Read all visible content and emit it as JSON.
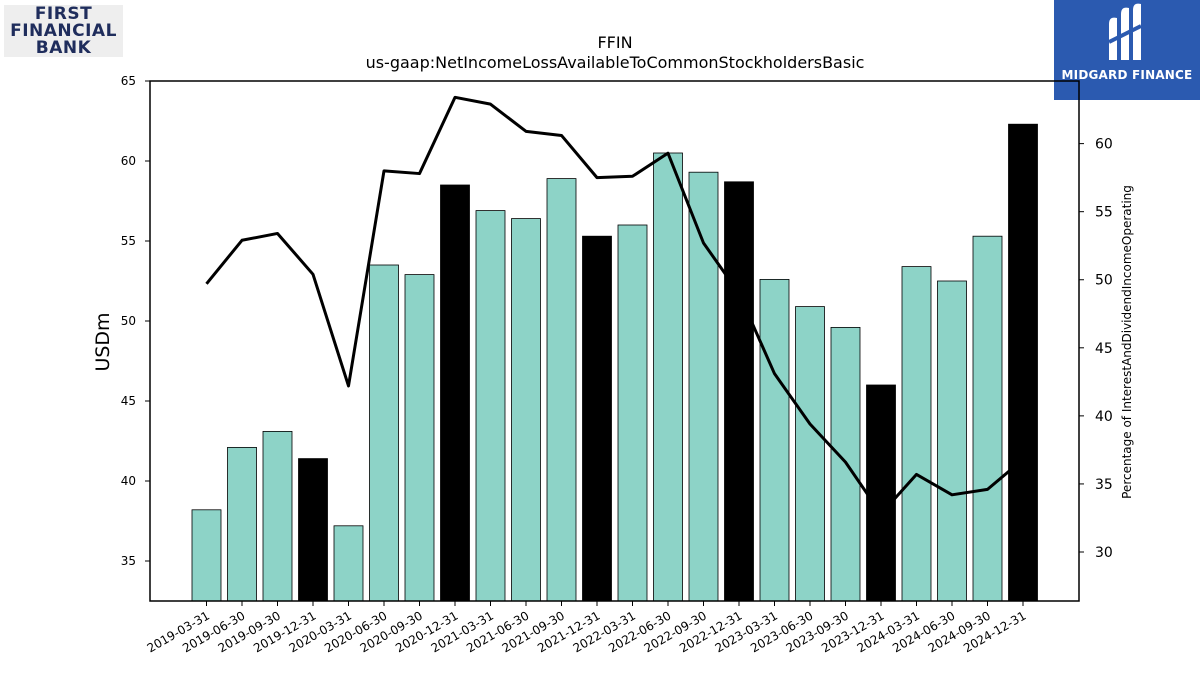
{
  "logos": {
    "left": {
      "line1": "FIRST",
      "line2": "FINANCIAL",
      "line3": "BANK"
    },
    "right": {
      "name": "MIDGARD FINANCE"
    }
  },
  "chart_data": {
    "type": "bar",
    "title": "FFIN",
    "subtitle": "us-gaap:NetIncomeLossAvailableToCommonStockholdersBasic",
    "ylabel": "USDm",
    "y2label": "Percentage of InterestAndDividendIncomeOperating",
    "ylim": [
      32.5,
      65
    ],
    "y2lim": [
      26.4,
      64.6
    ],
    "yticks": [
      35,
      40,
      45,
      50,
      55,
      60,
      65
    ],
    "y2ticks": [
      30,
      35,
      40,
      45,
      50,
      55,
      60
    ],
    "categories": [
      "2019-03-31",
      "2019-06-30",
      "2019-09-30",
      "2019-12-31",
      "2020-03-31",
      "2020-06-30",
      "2020-09-30",
      "2020-12-31",
      "2021-03-31",
      "2021-06-30",
      "2021-09-30",
      "2021-12-31",
      "2022-03-31",
      "2022-06-30",
      "2022-09-30",
      "2022-12-31",
      "2023-03-31",
      "2023-06-30",
      "2023-09-30",
      "2023-12-31",
      "2024-03-31",
      "2024-06-30",
      "2024-09-30",
      "2024-12-31"
    ],
    "series": [
      {
        "type": "bar",
        "values": [
          38.2,
          42.1,
          43.1,
          41.4,
          37.2,
          53.5,
          52.9,
          58.5,
          56.9,
          56.4,
          58.9,
          55.3,
          56.0,
          60.5,
          59.3,
          58.7,
          52.6,
          50.9,
          49.6,
          46.0,
          53.4,
          52.5,
          55.3,
          62.3
        ],
        "colors": [
          "#8dd3c7",
          "#8dd3c7",
          "#8dd3c7",
          "#000000",
          "#8dd3c7",
          "#8dd3c7",
          "#8dd3c7",
          "#000000",
          "#8dd3c7",
          "#8dd3c7",
          "#8dd3c7",
          "#000000",
          "#8dd3c7",
          "#8dd3c7",
          "#8dd3c7",
          "#000000",
          "#8dd3c7",
          "#8dd3c7",
          "#8dd3c7",
          "#000000",
          "#8dd3c7",
          "#8dd3c7",
          "#8dd3c7",
          "#000000"
        ]
      },
      {
        "type": "line",
        "axis": "right",
        "color": "#000000",
        "values": [
          49.7,
          52.9,
          53.4,
          50.4,
          42.2,
          58.0,
          57.8,
          63.4,
          62.9,
          60.9,
          60.6,
          57.5,
          57.6,
          59.3,
          52.7,
          49.0,
          43.1,
          39.4,
          36.6,
          32.8,
          35.7,
          34.2,
          34.6,
          36.8
        ]
      }
    ],
    "grid": false,
    "legend": "none"
  }
}
